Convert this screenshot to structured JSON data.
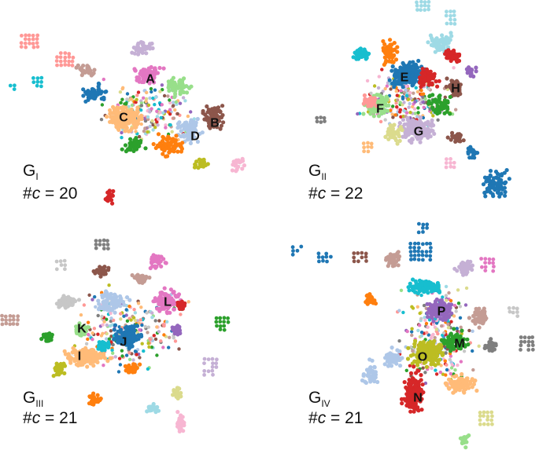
{
  "panels": [
    {
      "graph_letter": "G",
      "graph_index": "I",
      "count_prefix": "#",
      "count_var": "c",
      "count_rest": " = 20",
      "cluster_labels": [
        "A",
        "B",
        "C",
        "D"
      ],
      "cluster_colors": [
        "#e377c2",
        "#8c564b",
        "#ffbb78",
        "#aec7e8"
      ]
    },
    {
      "graph_letter": "G",
      "graph_index": "II",
      "count_prefix": "#",
      "count_var": "c",
      "count_rest": " = 22",
      "cluster_labels": [
        "E",
        "F",
        "G",
        "H"
      ],
      "cluster_colors": [
        "#1f77b4",
        "#98df8a",
        "#c5b0d5",
        "#8c564b"
      ]
    },
    {
      "graph_letter": "G",
      "graph_index": "III",
      "count_prefix": "#",
      "count_var": "c",
      "count_rest": " = 21",
      "cluster_labels": [
        "I",
        "J",
        "K",
        "L"
      ],
      "cluster_colors": [
        "#ffbb78",
        "#1f77b4",
        "#98df8a",
        "#e377c2"
      ]
    },
    {
      "graph_letter": "G",
      "graph_index": "IV",
      "count_prefix": "#",
      "count_var": "c",
      "count_rest": " = 21",
      "cluster_labels": [
        "M",
        "N",
        "O",
        "P"
      ],
      "cluster_colors": [
        "#2ca02c",
        "#d62728",
        "#bcbd22",
        "#9467bd"
      ]
    }
  ],
  "palette": [
    "#1f77b4",
    "#aec7e8",
    "#ff7f0e",
    "#ffbb78",
    "#2ca02c",
    "#98df8a",
    "#d62728",
    "#ff9896",
    "#9467bd",
    "#c5b0d5",
    "#8c564b",
    "#c49c94",
    "#e377c2",
    "#f7b6d2",
    "#7f7f7f",
    "#c7c7c7",
    "#bcbd22",
    "#dbdb8d",
    "#17becf",
    "#9edae5"
  ]
}
